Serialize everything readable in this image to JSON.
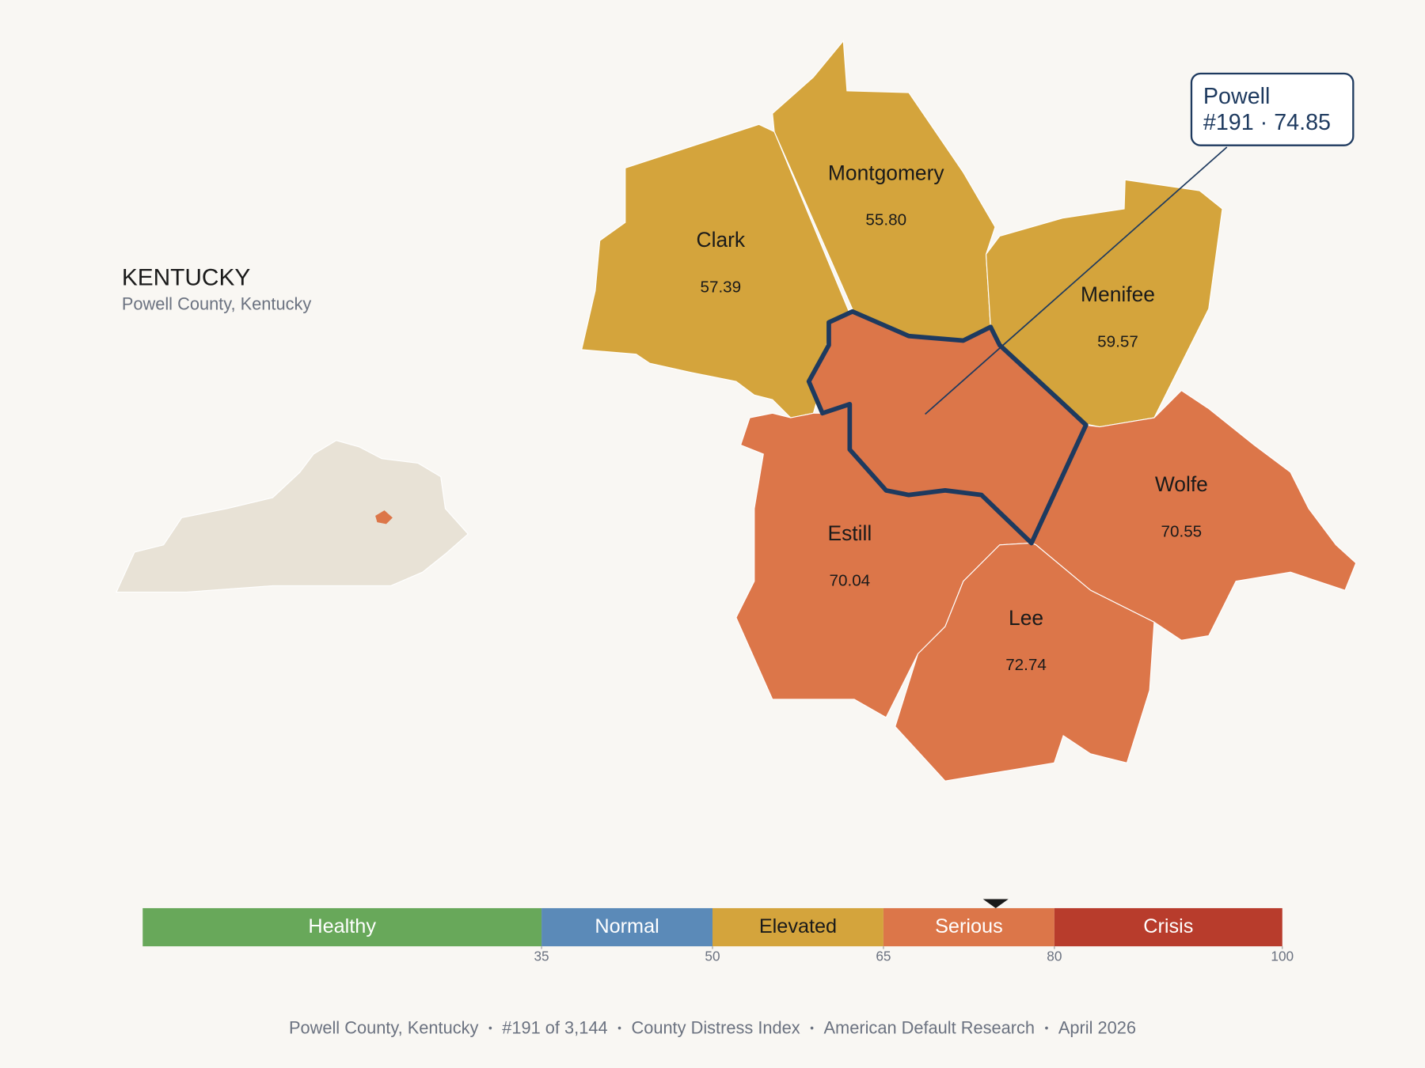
{
  "header": {
    "title": "KENTUCKY",
    "subtitle": "Powell County, Kentucky"
  },
  "counties": [
    {
      "name": "Clark",
      "value": "57.39",
      "color": "#d4a43c"
    },
    {
      "name": "Montgomery",
      "value": "55.80",
      "color": "#d4a43c"
    },
    {
      "name": "Menifee",
      "value": "59.57",
      "color": "#d4a43c"
    },
    {
      "name": "Wolfe",
      "value": "70.55",
      "color": "#dc7649"
    },
    {
      "name": "Estill",
      "value": "70.04",
      "color": "#dc7649"
    },
    {
      "name": "Lee",
      "value": "72.74",
      "color": "#dc7649"
    }
  ],
  "focus": {
    "name": "Powell",
    "line2": "#191 · 74.85",
    "value": 74.85,
    "color": "#dc7649",
    "outline": "#1e3a5f"
  },
  "legend": {
    "lim": [
      0,
      100
    ],
    "ticks": [
      35,
      50,
      65,
      80,
      100
    ],
    "bands": [
      {
        "label": "Healthy",
        "color": "#68a85a"
      },
      {
        "label": "Normal",
        "color": "#5b8ab8"
      },
      {
        "label": "Elevated",
        "color": "#d4a43c"
      },
      {
        "label": "Serious",
        "color": "#dc7649"
      },
      {
        "label": "Crisis",
        "color": "#b83c2c"
      }
    ]
  },
  "footer": [
    "Powell County, Kentucky",
    "#191 of 3,144",
    "County Distress Index",
    "American Default Research",
    "April 2026"
  ]
}
